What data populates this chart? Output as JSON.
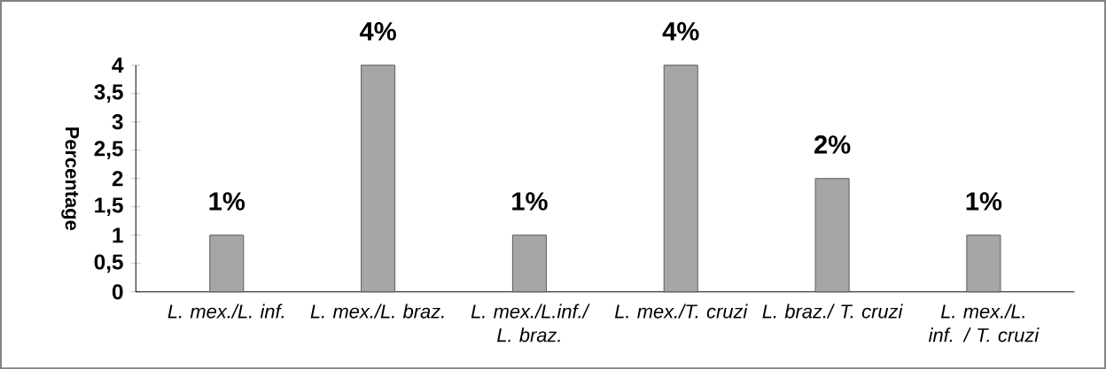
{
  "chart_data": {
    "type": "bar",
    "categories": [
      "L. mex./L. inf.",
      "L. mex./L. braz.",
      "L. mex./L.inf./ L. braz.",
      "L. mex./T. cruzi",
      "L. braz./ T. cruzi",
      "L. mex./L. inf. / T. cruzi"
    ],
    "values": [
      1,
      4,
      1,
      4,
      2,
      1
    ],
    "value_labels": [
      "1%",
      "4%",
      "1%",
      "4%",
      "2%",
      "1%"
    ],
    "color": "#a6a6a6",
    "ylabel": "Percentage",
    "ylim": [
      0,
      4
    ],
    "yticks": [
      0,
      {
        "value": 0.5,
        "label": "0,5"
      },
      1,
      {
        "value": 1.5,
        "label": "1,5"
      },
      2,
      {
        "value": 2.5,
        "label": "2,5"
      },
      3,
      {
        "value": 3.5,
        "label": "3,5"
      },
      4
    ],
    "grid": false
  }
}
